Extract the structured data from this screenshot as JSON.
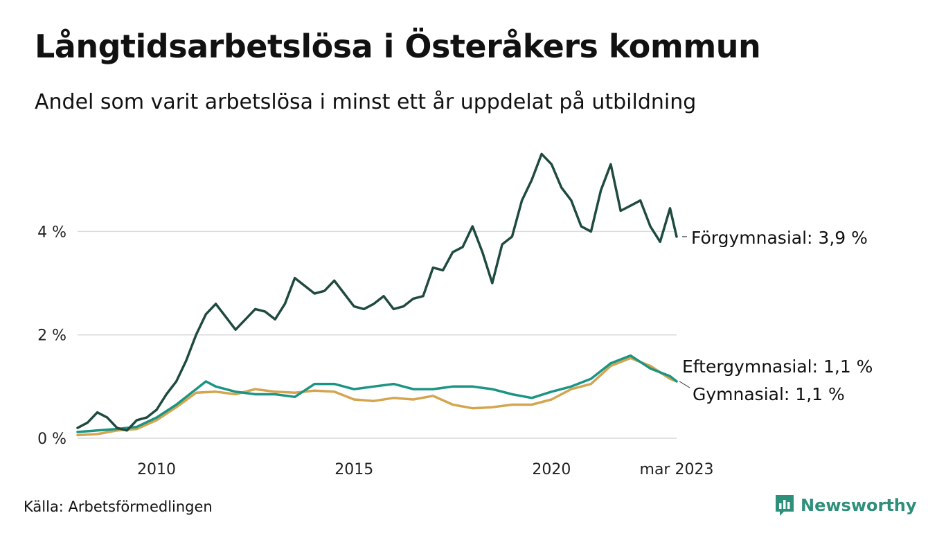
{
  "title": "Långtidsarbetslösa i Österåkers kommun",
  "subtitle": "Andel som varit arbetslösa i minst ett år uppdelat på utbildning",
  "source": "Källa: Arbetsförmedlingen",
  "brand": {
    "name": "Newsworthy",
    "icon": "bar-chart-speech-icon",
    "color": "#2e8f7a"
  },
  "chart_data": {
    "type": "line",
    "x_range": [
      "2008-01",
      "2023-03"
    ],
    "ylim": [
      0,
      5.8
    ],
    "unit": "%",
    "grid": true,
    "x_ticks": [
      {
        "x": "2010-01",
        "label": "2010"
      },
      {
        "x": "2015-01",
        "label": "2015"
      },
      {
        "x": "2020-01",
        "label": "2020"
      },
      {
        "x": "2023-03",
        "label": "mar 2023"
      }
    ],
    "y_ticks": [
      {
        "y": 0,
        "label": "0 %"
      },
      {
        "y": 2,
        "label": "2 %"
      },
      {
        "y": 4,
        "label": "4 %"
      }
    ],
    "series": [
      {
        "name": "Förgymnasial",
        "end_label": "Förgymnasial: 3,9 %",
        "color": "#1f4a40",
        "points": [
          [
            "2008-01",
            0.2
          ],
          [
            "2008-04",
            0.3
          ],
          [
            "2008-07",
            0.5
          ],
          [
            "2008-10",
            0.4
          ],
          [
            "2009-01",
            0.2
          ],
          [
            "2009-04",
            0.15
          ],
          [
            "2009-07",
            0.35
          ],
          [
            "2009-10",
            0.4
          ],
          [
            "2010-01",
            0.55
          ],
          [
            "2010-04",
            0.85
          ],
          [
            "2010-07",
            1.1
          ],
          [
            "2010-10",
            1.5
          ],
          [
            "2011-01",
            2.0
          ],
          [
            "2011-04",
            2.4
          ],
          [
            "2011-07",
            2.6
          ],
          [
            "2011-10",
            2.35
          ],
          [
            "2012-01",
            2.1
          ],
          [
            "2012-04",
            2.3
          ],
          [
            "2012-07",
            2.5
          ],
          [
            "2012-10",
            2.45
          ],
          [
            "2013-01",
            2.3
          ],
          [
            "2013-04",
            2.6
          ],
          [
            "2013-07",
            3.1
          ],
          [
            "2013-10",
            2.95
          ],
          [
            "2014-01",
            2.8
          ],
          [
            "2014-04",
            2.85
          ],
          [
            "2014-07",
            3.05
          ],
          [
            "2014-10",
            2.8
          ],
          [
            "2015-01",
            2.55
          ],
          [
            "2015-04",
            2.5
          ],
          [
            "2015-07",
            2.6
          ],
          [
            "2015-10",
            2.75
          ],
          [
            "2016-01",
            2.5
          ],
          [
            "2016-04",
            2.55
          ],
          [
            "2016-07",
            2.7
          ],
          [
            "2016-10",
            2.75
          ],
          [
            "2017-01",
            3.3
          ],
          [
            "2017-04",
            3.25
          ],
          [
            "2017-07",
            3.6
          ],
          [
            "2017-10",
            3.7
          ],
          [
            "2018-01",
            4.1
          ],
          [
            "2018-04",
            3.6
          ],
          [
            "2018-07",
            3.0
          ],
          [
            "2018-10",
            3.75
          ],
          [
            "2019-01",
            3.9
          ],
          [
            "2019-04",
            4.6
          ],
          [
            "2019-07",
            5.0
          ],
          [
            "2019-10",
            5.5
          ],
          [
            "2020-01",
            5.3
          ],
          [
            "2020-04",
            4.85
          ],
          [
            "2020-07",
            4.6
          ],
          [
            "2020-10",
            4.1
          ],
          [
            "2021-01",
            4.0
          ],
          [
            "2021-04",
            4.8
          ],
          [
            "2021-07",
            5.3
          ],
          [
            "2021-10",
            4.4
          ],
          [
            "2022-01",
            4.5
          ],
          [
            "2022-04",
            4.6
          ],
          [
            "2022-07",
            4.1
          ],
          [
            "2022-10",
            3.8
          ],
          [
            "2023-01",
            4.45
          ],
          [
            "2023-03",
            3.9
          ]
        ]
      },
      {
        "name": "Eftergymnasial",
        "end_label": "Eftergymnasial: 1,1 %",
        "color": "#1c9484",
        "points": [
          [
            "2008-01",
            0.12
          ],
          [
            "2008-07",
            0.15
          ],
          [
            "2009-01",
            0.18
          ],
          [
            "2009-07",
            0.22
          ],
          [
            "2010-01",
            0.4
          ],
          [
            "2010-07",
            0.65
          ],
          [
            "2011-01",
            0.95
          ],
          [
            "2011-04",
            1.1
          ],
          [
            "2011-07",
            1.0
          ],
          [
            "2012-01",
            0.9
          ],
          [
            "2012-07",
            0.85
          ],
          [
            "2013-01",
            0.85
          ],
          [
            "2013-07",
            0.8
          ],
          [
            "2014-01",
            1.05
          ],
          [
            "2014-07",
            1.05
          ],
          [
            "2015-01",
            0.95
          ],
          [
            "2015-07",
            1.0
          ],
          [
            "2016-01",
            1.05
          ],
          [
            "2016-07",
            0.95
          ],
          [
            "2017-01",
            0.95
          ],
          [
            "2017-07",
            1.0
          ],
          [
            "2018-01",
            1.0
          ],
          [
            "2018-07",
            0.95
          ],
          [
            "2019-01",
            0.85
          ],
          [
            "2019-07",
            0.78
          ],
          [
            "2020-01",
            0.9
          ],
          [
            "2020-07",
            1.0
          ],
          [
            "2021-01",
            1.15
          ],
          [
            "2021-07",
            1.45
          ],
          [
            "2022-01",
            1.6
          ],
          [
            "2022-07",
            1.35
          ],
          [
            "2023-01",
            1.2
          ],
          [
            "2023-03",
            1.1
          ]
        ]
      },
      {
        "name": "Gymnasial",
        "end_label": "Gymnasial: 1,1 %",
        "color": "#d4a54e",
        "points": [
          [
            "2008-01",
            0.06
          ],
          [
            "2008-07",
            0.08
          ],
          [
            "2009-01",
            0.15
          ],
          [
            "2009-07",
            0.18
          ],
          [
            "2010-01",
            0.35
          ],
          [
            "2010-07",
            0.6
          ],
          [
            "2011-01",
            0.88
          ],
          [
            "2011-07",
            0.9
          ],
          [
            "2012-01",
            0.85
          ],
          [
            "2012-07",
            0.95
          ],
          [
            "2013-01",
            0.9
          ],
          [
            "2013-07",
            0.88
          ],
          [
            "2014-01",
            0.92
          ],
          [
            "2014-07",
            0.9
          ],
          [
            "2015-01",
            0.75
          ],
          [
            "2015-07",
            0.72
          ],
          [
            "2016-01",
            0.78
          ],
          [
            "2016-07",
            0.75
          ],
          [
            "2017-01",
            0.82
          ],
          [
            "2017-07",
            0.65
          ],
          [
            "2018-01",
            0.58
          ],
          [
            "2018-07",
            0.6
          ],
          [
            "2019-01",
            0.65
          ],
          [
            "2019-07",
            0.65
          ],
          [
            "2020-01",
            0.75
          ],
          [
            "2020-07",
            0.95
          ],
          [
            "2021-01",
            1.05
          ],
          [
            "2021-07",
            1.4
          ],
          [
            "2022-01",
            1.55
          ],
          [
            "2022-07",
            1.4
          ],
          [
            "2023-01",
            1.15
          ],
          [
            "2023-03",
            1.1
          ]
        ]
      }
    ]
  }
}
